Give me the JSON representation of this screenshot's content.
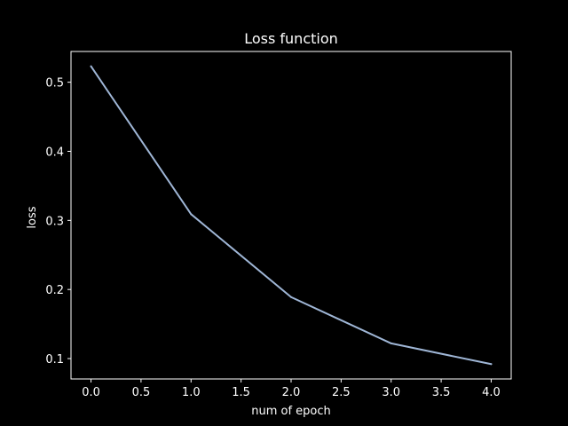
{
  "chart_data": {
    "type": "line",
    "title": "Loss function",
    "xlabel": "num of epoch",
    "ylabel": "loss",
    "x": [
      0,
      1,
      2,
      3,
      4
    ],
    "series": [
      {
        "values": [
          0.523,
          0.309,
          0.189,
          0.122,
          0.092
        ],
        "color": "#9fb6d6"
      }
    ],
    "xlim": [
      -0.2,
      4.2
    ],
    "ylim": [
      0.0705,
      0.5445
    ],
    "xticks": [
      0.0,
      0.5,
      1.0,
      1.5,
      2.0,
      2.5,
      3.0,
      3.5,
      4.0
    ],
    "xtick_labels": [
      "0.0",
      "0.5",
      "1.0",
      "1.5",
      "2.0",
      "2.5",
      "3.0",
      "3.5",
      "4.0"
    ],
    "yticks": [
      0.1,
      0.2,
      0.3,
      0.4,
      0.5
    ],
    "ytick_labels": [
      "0.1",
      "0.2",
      "0.3",
      "0.4",
      "0.5"
    ],
    "grid": false,
    "legend": false,
    "background_color": "#000000",
    "axis_color": "#ffffff"
  }
}
